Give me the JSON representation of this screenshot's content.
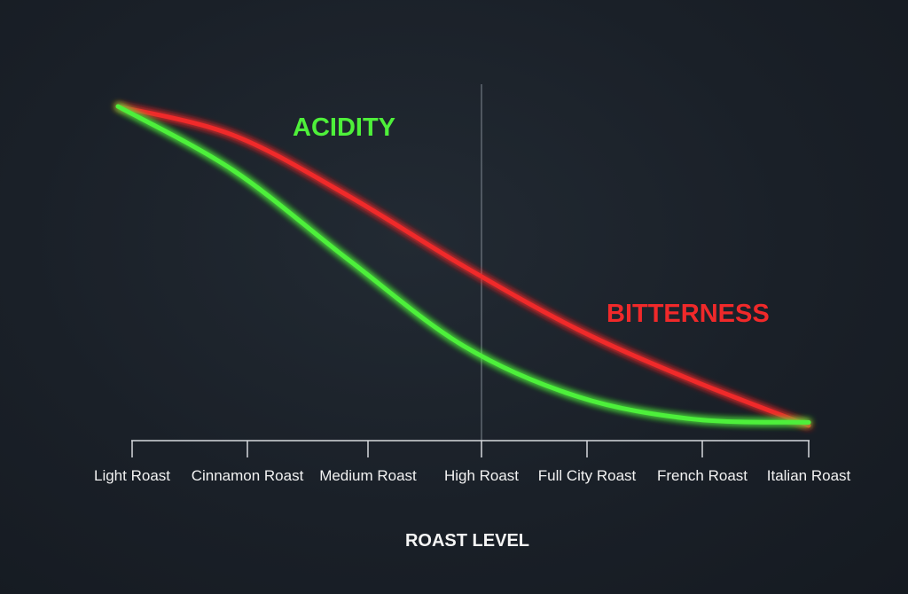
{
  "chart_data": {
    "type": "line",
    "title": "",
    "xlabel": "ROAST LEVEL",
    "ylabel": "",
    "categories": [
      "Light Roast",
      "Cinnamon Roast",
      "Medium Roast",
      "High Roast",
      "Full City Roast",
      "French Roast",
      "Italian Roast"
    ],
    "x": [
      0,
      1,
      2,
      3,
      4,
      5,
      6
    ],
    "ylim": [
      0,
      100
    ],
    "grid": false,
    "highlight_category": "High Roast",
    "series": [
      {
        "name": "ACIDITY",
        "color": "#4ef03a",
        "values": [
          100,
          80,
          52,
          25,
          9,
          2,
          1
        ]
      },
      {
        "name": "BITTERNESS",
        "color": "#f0292a",
        "values": [
          100,
          91,
          72,
          50,
          30,
          14,
          0
        ]
      }
    ]
  }
}
